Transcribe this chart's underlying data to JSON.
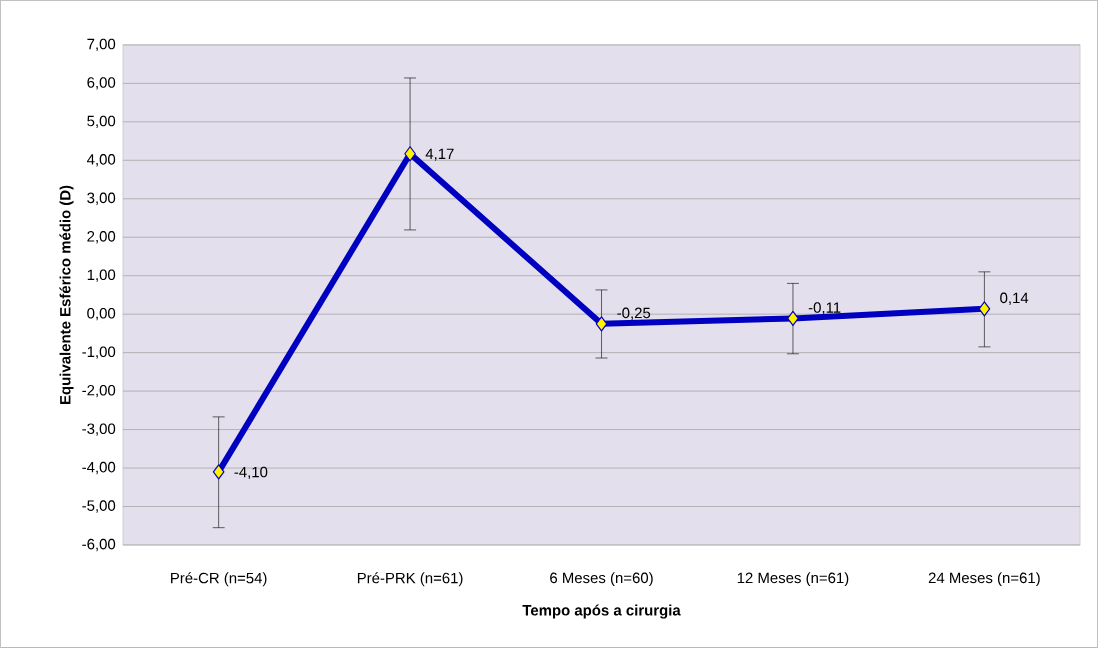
{
  "chart_data": {
    "type": "line",
    "xlabel": "Tempo após a cirurgia",
    "ylabel": "Equivalente Esférico médio (D)",
    "categories": [
      "Pré-CR (n=54)",
      "Pré-PRK (n=61)",
      "6 Meses (n=60)",
      "12 Meses (n=61)",
      "24 Meses (n=61)"
    ],
    "series": [
      {
        "color": "#0000c0",
        "values": [
          -4.1,
          4.17,
          -0.25,
          -0.11,
          0.14
        ],
        "errors": [
          [
            -5.55,
            -2.67
          ],
          [
            2.19,
            6.14
          ],
          [
            -1.14,
            0.63
          ],
          [
            -1.03,
            0.8
          ],
          [
            -0.85,
            1.1
          ]
        ],
        "value_labels": [
          "-4,10",
          "4,17",
          "-0,25",
          "-0,11",
          "0,14"
        ]
      }
    ],
    "marker": "diamond",
    "line_style": "solid",
    "grid": "y",
    "ylim": [
      -6,
      7
    ],
    "yticks": [
      {
        "value": -6,
        "label": "-6,00"
      },
      {
        "value": -5,
        "label": "-5,00"
      },
      {
        "value": -4,
        "label": "-4,00"
      },
      {
        "value": -3,
        "label": "-3,00"
      },
      {
        "value": -2,
        "label": "-2,00"
      },
      {
        "value": -1,
        "label": "-1,00"
      },
      {
        "value": 0,
        "label": "0,00"
      },
      {
        "value": 1,
        "label": "1,00"
      },
      {
        "value": 2,
        "label": "2,00"
      },
      {
        "value": 3,
        "label": "3,00"
      },
      {
        "value": 4,
        "label": "4,00"
      },
      {
        "value": 5,
        "label": "5,00"
      },
      {
        "value": 6,
        "label": "6,00"
      },
      {
        "value": 7,
        "label": "7,00"
      }
    ]
  }
}
